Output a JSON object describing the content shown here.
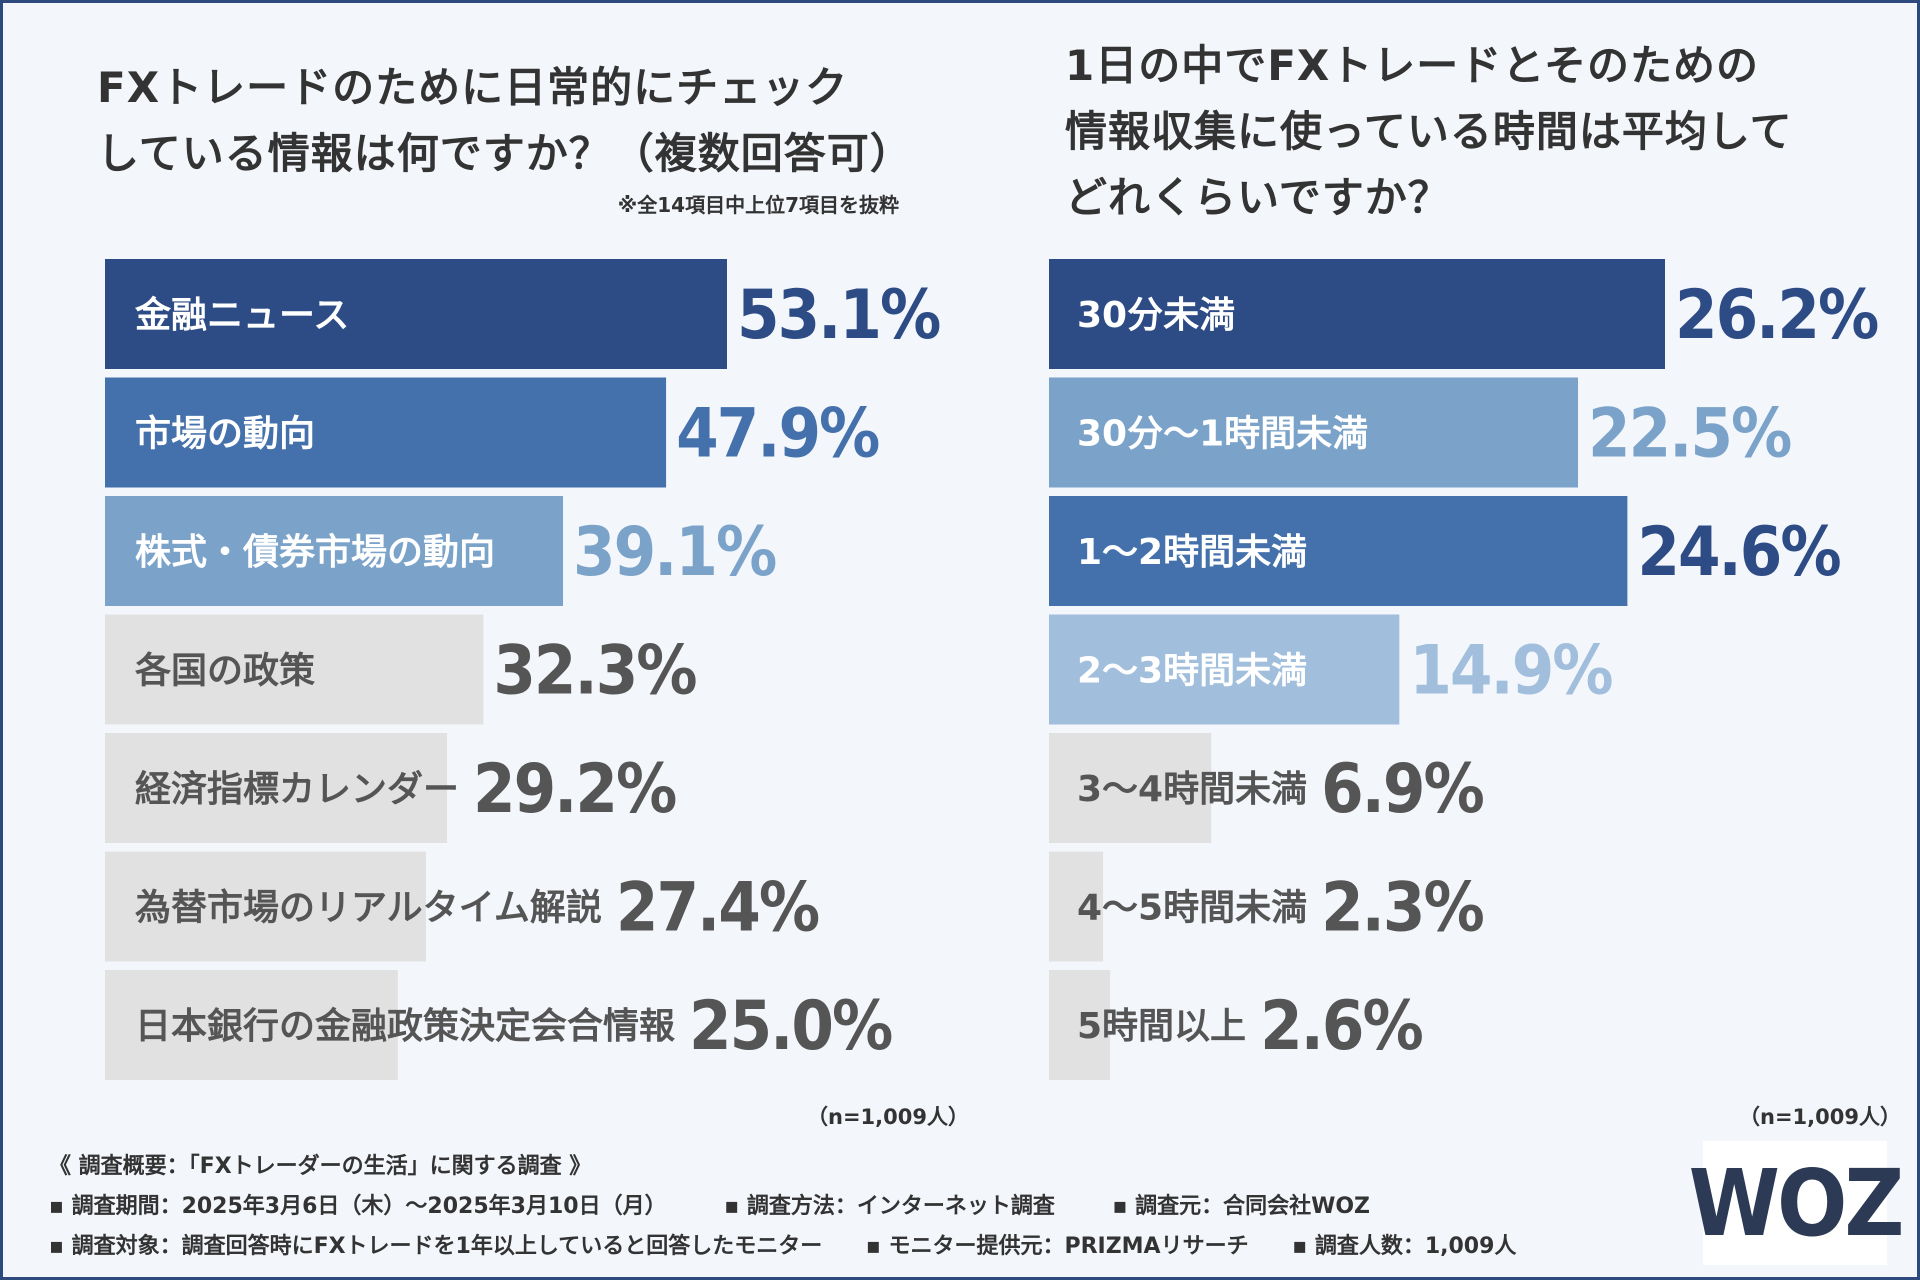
{
  "left_chart": {
    "title_line1": "FXトレードのために日常的にチェック",
    "title_line2": "している情報は何ですか？（複数回答可）",
    "note": "※全14項目中上位7項目を抜粋",
    "n_label": "（n=1,009人）"
  },
  "right_chart": {
    "title_line1": "1日の中でFXトレードとそのための",
    "title_line2": "情報収集に使っている時間は平均して",
    "title_line3": "どれくらいですか？",
    "n_label": "（n=1,009人）"
  },
  "chart_data": [
    {
      "type": "bar",
      "orientation": "horizontal",
      "title": "FXトレードのために日常的にチェックしている情報は何ですか？（複数回答可）",
      "categories": [
        "金融ニュース",
        "市場の動向",
        "株式・債券市場の動向",
        "各国の政策",
        "経済指標カレンダー",
        "為替市場のリアルタイム解説",
        "日本銀行の金融政策決定会合情報"
      ],
      "values": [
        53.1,
        47.9,
        39.1,
        32.3,
        29.2,
        27.4,
        25.0
      ],
      "value_labels": [
        "53.1%",
        "47.9%",
        "39.1%",
        "32.3%",
        "29.2%",
        "27.4%",
        "25.0%"
      ],
      "bar_colors": [
        "#2d4b84",
        "#4471ab",
        "#7ba3c9",
        "#e1e1e1",
        "#e1e1e1",
        "#e1e1e1",
        "#e1e1e1"
      ],
      "label_colors": [
        "#ffffff",
        "#ffffff",
        "#ffffff",
        "#555555",
        "#555555",
        "#555555",
        "#555555"
      ],
      "value_colors": [
        "#2d4b84",
        "#4471ab",
        "#7ba3c9",
        "#555555",
        "#555555",
        "#555555",
        "#555555"
      ],
      "xlim": [
        0,
        53.1
      ],
      "unit": "%"
    },
    {
      "type": "bar",
      "orientation": "horizontal",
      "title": "1日の中でFXトレードとそのための情報収集に使っている時間は平均してどれくらいですか？",
      "categories": [
        "30分未満",
        "30分〜1時間未満",
        "1〜2時間未満",
        "2〜3時間未満",
        "3〜4時間未満",
        "4〜5時間未満",
        "5時間以上"
      ],
      "values": [
        26.2,
        22.5,
        24.6,
        14.9,
        6.9,
        2.3,
        2.6
      ],
      "value_labels": [
        "26.2%",
        "22.5%",
        "24.6%",
        "14.9%",
        "6.9%",
        "2.3%",
        "2.6%"
      ],
      "bar_colors": [
        "#2d4b84",
        "#7ba3c9",
        "#4471ab",
        "#a1bfdc",
        "#e1e1e1",
        "#e1e1e1",
        "#e1e1e1"
      ],
      "label_colors": [
        "#ffffff",
        "#ffffff",
        "#ffffff",
        "#ffffff",
        "#555555",
        "#555555",
        "#555555"
      ],
      "value_colors": [
        "#2d4b84",
        "#7ba3c9",
        "#2d4b84",
        "#a1bfdc",
        "#555555",
        "#555555",
        "#555555"
      ],
      "xlim": [
        0,
        26.2
      ],
      "unit": "%"
    }
  ],
  "footer": {
    "heading": "《 調査概要：「FXトレーダーの生活」に関する調査 》",
    "period": "▪ 調査期間：2025年3月6日（木）〜2025年3月10日（月）",
    "method": "▪ 調査方法：インターネット調査",
    "source": "▪ 調査元：合同会社WOZ",
    "target": "▪ 調査対象：調査回答時にFXトレードを1年以上していると回答したモニター",
    "provider": "▪ モニター提供元：PRIZMAリサーチ",
    "count": "▪ 調査人数：1,009人"
  },
  "logo": "WOZ"
}
